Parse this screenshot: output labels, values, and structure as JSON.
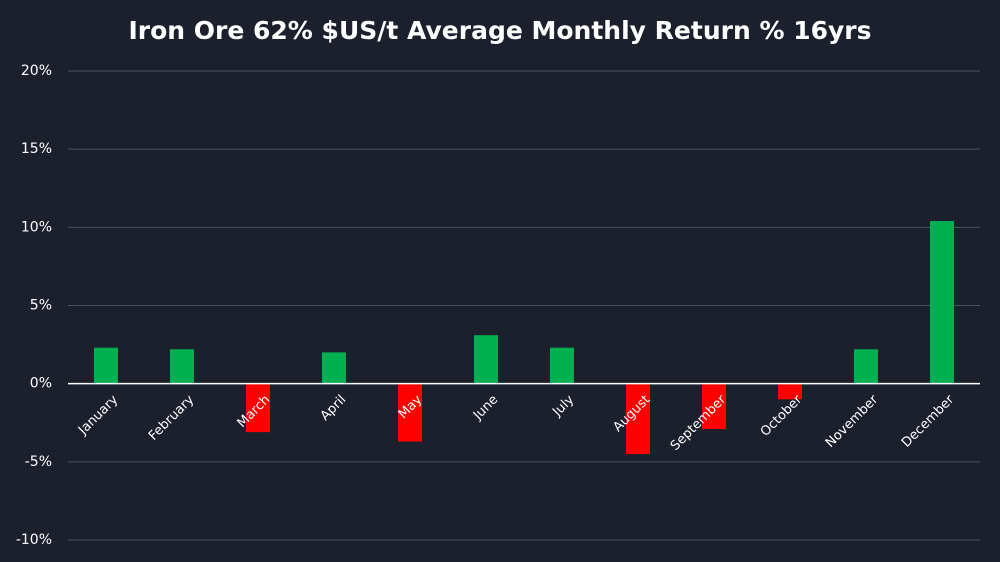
{
  "chart_data": {
    "type": "bar",
    "title": "Iron Ore 62% $US/t Average Monthly Return % 16yrs",
    "categories": [
      "January",
      "February",
      "March",
      "April",
      "May",
      "June",
      "July",
      "August",
      "September",
      "October",
      "November",
      "December"
    ],
    "values": [
      2.3,
      2.2,
      -3.1,
      2.0,
      -3.7,
      3.1,
      2.3,
      -4.5,
      -2.9,
      -1.0,
      2.2,
      10.4
    ],
    "color_positive": "#00b050",
    "color_negative": "#ff0000",
    "ylim": [
      -10,
      20
    ],
    "yticks": [
      {
        "value": -10,
        "label": "-10%"
      },
      {
        "value": -5,
        "label": "-5%"
      },
      {
        "value": 0,
        "label": "0%"
      },
      {
        "value": 5,
        "label": "5%"
      },
      {
        "value": 10,
        "label": "10%"
      },
      {
        "value": 15,
        "label": "15%"
      },
      {
        "value": 20,
        "label": "20%"
      }
    ],
    "grid": true
  }
}
